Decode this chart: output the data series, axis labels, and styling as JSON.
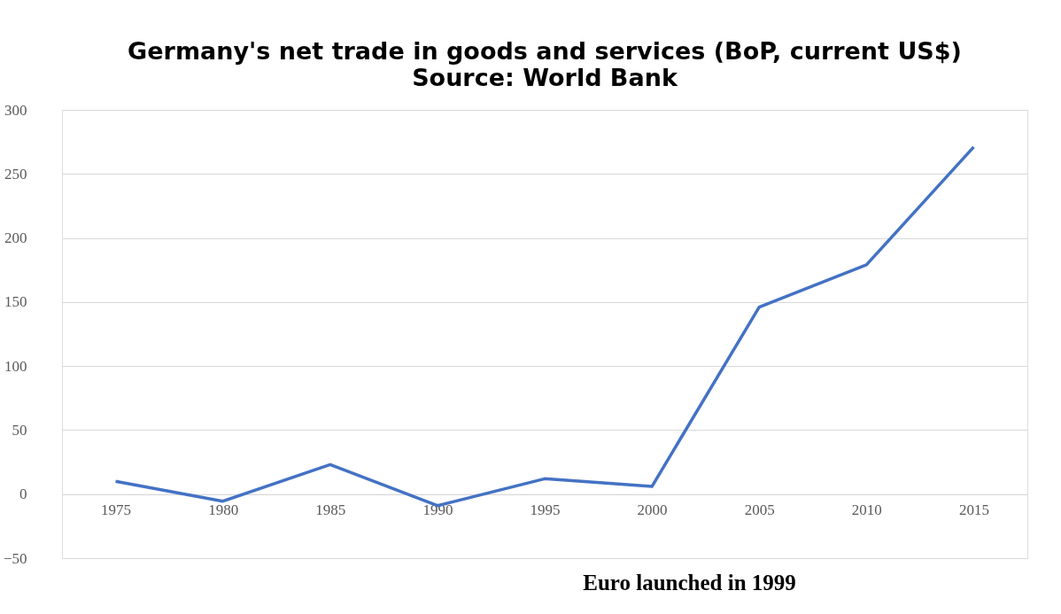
{
  "chart_data": {
    "type": "line",
    "title": "Germany's net trade in goods and services (BoP, current US$)",
    "categories": [
      "1975",
      "1980",
      "1985",
      "1990",
      "1995",
      "2000",
      "2005",
      "2010",
      "2015"
    ],
    "series": [
      {
        "color": "#4472c4",
        "values": [
          10,
          -5.5,
          23,
          -9,
          12,
          6,
          146,
          179,
          271
        ]
      }
    ],
    "ylim": [
      -50,
      300
    ],
    "yticks": [
      -50,
      0,
      50,
      100,
      150,
      200,
      250,
      300
    ],
    "grid": "y",
    "annotations": [
      "Source: World Bank",
      "Euro launched in 1999"
    ]
  }
}
